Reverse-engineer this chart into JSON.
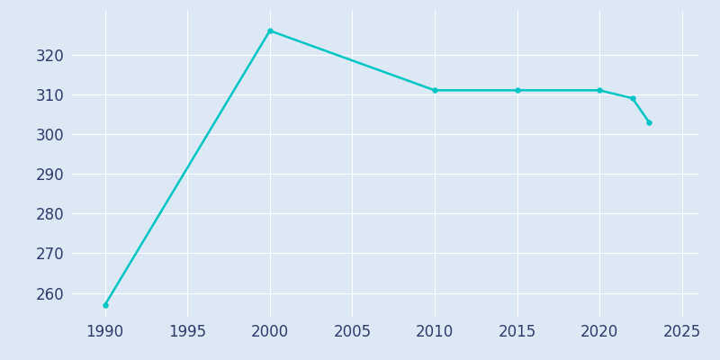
{
  "years": [
    1990,
    2000,
    2010,
    2015,
    2020,
    2022,
    2023
  ],
  "population": [
    257,
    326,
    311,
    311,
    311,
    309,
    303
  ],
  "line_color": "#00C5C5",
  "marker_color": "#00C5C5",
  "bg_color": "#dce9f5",
  "axes_bg_color": "#dce9f5",
  "grid_color": "#ffffff",
  "tick_label_color": "#2d3a6b",
  "xlim": [
    1988,
    2026
  ],
  "ylim": [
    254,
    331
  ],
  "xticks": [
    1990,
    1995,
    2000,
    2005,
    2010,
    2015,
    2020,
    2025
  ],
  "yticks": [
    260,
    270,
    280,
    290,
    300,
    310,
    320
  ],
  "line_width": 1.8,
  "marker_size": 4,
  "tick_labelsize": 12
}
